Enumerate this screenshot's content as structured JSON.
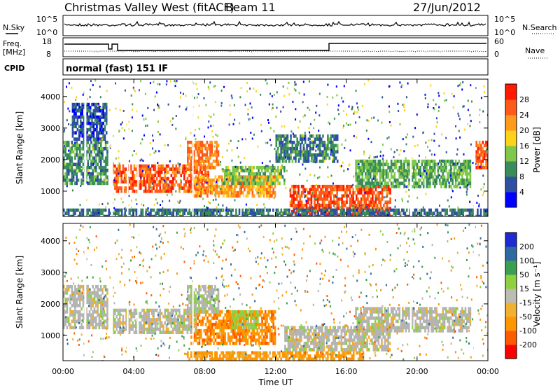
{
  "header": {
    "title": "Christmas Valley West (fitACF)",
    "beam": "Beam 11",
    "date": "27/Jun/2012"
  },
  "params": {
    "nsky_label": "N.Sky",
    "nsearch_label": "N.Search",
    "nsky_ticks": [
      "10^5",
      "10^0"
    ],
    "nsearch_ticks": [
      "10^5",
      "10^0"
    ],
    "freq_label": "Freq.",
    "freq_unit": "[MHz]",
    "freq_ticks": [
      "18",
      "8"
    ],
    "nave_label": "Nave",
    "nave_ticks": [
      "60",
      "0"
    ],
    "cpid_label": "CPID",
    "cpid_value": "normal (fast) 151 IF"
  },
  "colors": {
    "power": [
      "#0000ff",
      "#2e4fa3",
      "#3a8d5a",
      "#7fc84a",
      "#ffd21a",
      "#ff9a1f",
      "#ff5a1a",
      "#ff1a00"
    ],
    "velocity": [
      "#ff0000",
      "#ff5a00",
      "#ff9500",
      "#f0b030",
      "#bcbcb0",
      "#8fd040",
      "#3aa050",
      "#2e6aa0",
      "#1e2ad0"
    ],
    "ground_scatter": "#b4b4b4"
  },
  "chart_data": [
    {
      "type": "heatmap",
      "panel": "power",
      "ylabel": "Slant Range [km]",
      "yticks": [
        "1000",
        "2000",
        "3000",
        "4000"
      ],
      "ylim": [
        200,
        4550
      ],
      "xlim": [
        0,
        24
      ],
      "xticks": [
        "00:00",
        "04:00",
        "08:00",
        "12:00",
        "16:00",
        "20:00",
        "00:00"
      ],
      "colorbar_label": "Power [dB]",
      "colorbar_ticks": [
        "4",
        "8",
        "12",
        "16",
        "20",
        "24",
        "28"
      ],
      "colorbar_range": [
        0,
        32
      ],
      "regions": [
        {
          "t0": 2.8,
          "t1": 8.2,
          "r0": 1050,
          "r1": 1850,
          "level": 26
        },
        {
          "t0": 7.0,
          "t1": 8.8,
          "r0": 1800,
          "r1": 2600,
          "level": 24
        },
        {
          "t0": 7.2,
          "t1": 12.0,
          "r0": 900,
          "r1": 1500,
          "level": 22
        },
        {
          "t0": 9.0,
          "t1": 12.5,
          "r0": 1300,
          "r1": 1800,
          "level": 14
        },
        {
          "t0": 12.8,
          "t1": 18.5,
          "r0": 300,
          "r1": 1200,
          "level": 27
        },
        {
          "t0": 16.5,
          "t1": 23.0,
          "r0": 1200,
          "r1": 2000,
          "level": 12
        },
        {
          "t0": 0.0,
          "t1": 2.5,
          "r0": 1300,
          "r1": 2600,
          "level": 10
        },
        {
          "t0": 0.5,
          "t1": 2.5,
          "r0": 2700,
          "r1": 3800,
          "level": 6
        },
        {
          "t0": 12.0,
          "t1": 15.5,
          "r0": 2000,
          "r1": 2800,
          "level": 9
        },
        {
          "t0": 23.3,
          "t1": 24.0,
          "r0": 1800,
          "r1": 2600,
          "level": 26
        },
        {
          "t0": 0.0,
          "t1": 24.0,
          "r0": 200,
          "r1": 450,
          "level": 8
        }
      ]
    },
    {
      "type": "heatmap",
      "panel": "velocity",
      "ylabel": "Slant Range [km]",
      "yticks": [
        "1000",
        "2000",
        "3000",
        "4000"
      ],
      "ylim": [
        200,
        4550
      ],
      "xlim": [
        0,
        24
      ],
      "xlabel": "Time UT",
      "xticks": [
        "00:00",
        "04:00",
        "08:00",
        "12:00",
        "16:00",
        "20:00",
        "00:00"
      ],
      "colorbar_label": "Velocity [m s⁻¹]",
      "colorbar_ticks": [
        "-200",
        "-100",
        "-50",
        "-15",
        "15",
        "50",
        "100",
        "200"
      ],
      "colorbar_range": [
        -250,
        250
      ],
      "regions": [
        {
          "t0": 7.2,
          "t1": 12.0,
          "r0": 800,
          "r1": 1800,
          "v": -90
        },
        {
          "t0": 9.5,
          "t1": 11.0,
          "r0": 1300,
          "r1": 1800,
          "v": 30
        },
        {
          "t0": 7.0,
          "t1": 17.0,
          "r0": 250,
          "r1": 500,
          "v": -60
        },
        {
          "t0": 2.8,
          "t1": 7.5,
          "r0": 1100,
          "r1": 1850,
          "v": 0
        },
        {
          "t0": 0.0,
          "t1": 2.5,
          "r0": 1300,
          "r1": 2600,
          "v": 0
        },
        {
          "t0": 12.5,
          "t1": 18.5,
          "r0": 600,
          "r1": 1300,
          "v": 0
        },
        {
          "t0": 16.5,
          "t1": 23.0,
          "r0": 1200,
          "r1": 1900,
          "v": 0
        },
        {
          "t0": 7.0,
          "t1": 8.8,
          "r0": 1800,
          "r1": 2600,
          "v": 5
        }
      ]
    }
  ]
}
